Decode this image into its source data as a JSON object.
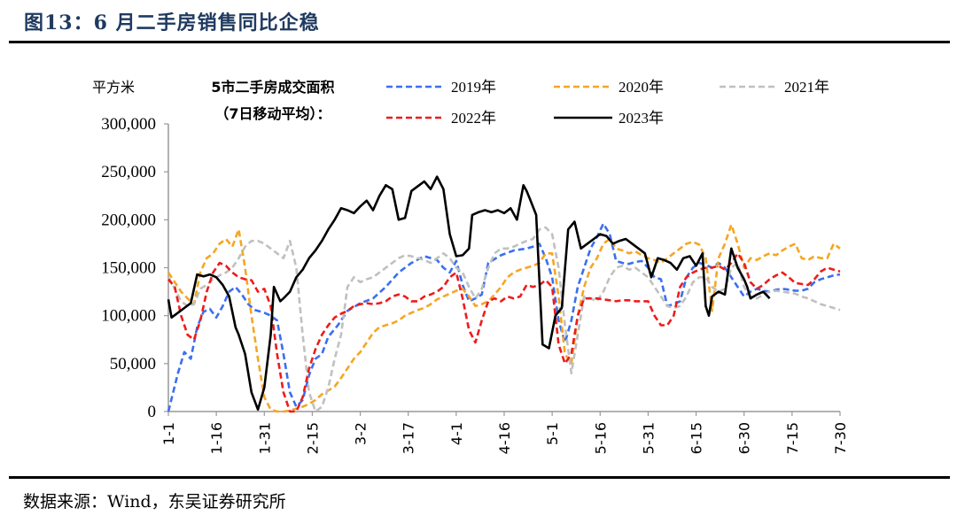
{
  "header": {
    "title": "图13：6 月二手房销售同比企稳"
  },
  "footer": {
    "source": "数据来源：Wind，东吴证券研究所"
  },
  "chart_data": {
    "type": "line",
    "title": "5市二手房成交面积",
    "subtitle": "（7日移动平均）：",
    "ylabel": "平方米",
    "xlabel": "",
    "ylim": [
      0,
      300000
    ],
    "xlim": [
      0,
      210
    ],
    "grid": false,
    "legend_position": "top",
    "yticks": [
      0,
      50000,
      100000,
      150000,
      200000,
      250000,
      300000
    ],
    "ytick_labels": [
      "0",
      "50,000",
      "100,000",
      "150,000",
      "200,000",
      "250,000",
      "300,000"
    ],
    "xticks": [
      0,
      15,
      30,
      45,
      60,
      75,
      90,
      105,
      120,
      135,
      150,
      165,
      180,
      195,
      210
    ],
    "xtick_labels": [
      "1-1",
      "1-16",
      "1-31",
      "2-15",
      "3-2",
      "3-17",
      "4-1",
      "4-16",
      "5-1",
      "5-16",
      "5-31",
      "6-15",
      "6-30",
      "7-15",
      "7-30"
    ],
    "x_unit": "day index from 1-1",
    "series": [
      {
        "name": "2019年",
        "color": "#3b6ff0",
        "dash": true,
        "x": [
          0,
          3,
          5,
          7,
          9,
          11,
          13,
          15,
          17,
          19,
          21,
          23,
          25,
          27,
          30,
          32,
          34,
          36,
          38,
          40,
          42,
          44,
          46,
          48,
          50,
          53,
          56,
          60,
          64,
          68,
          72,
          76,
          80,
          84,
          86,
          88,
          90,
          92,
          94,
          96,
          98,
          100,
          104,
          108,
          112,
          114,
          116,
          118,
          120,
          122,
          124,
          126,
          128,
          130,
          132,
          134,
          136,
          138,
          140,
          142,
          144,
          146,
          148,
          150,
          152,
          154,
          156,
          158,
          160,
          162,
          164,
          166,
          168,
          170,
          172,
          174,
          176,
          178,
          180,
          182,
          184,
          186,
          188,
          190,
          192,
          194,
          196,
          198,
          200,
          202,
          204,
          206,
          208,
          210
        ],
        "y": [
          0,
          40000,
          62000,
          55000,
          88000,
          104000,
          107000,
          98000,
          110000,
          125000,
          130000,
          122000,
          112000,
          106000,
          103000,
          100000,
          95000,
          60000,
          20000,
          5000,
          12000,
          38000,
          55000,
          60000,
          78000,
          90000,
          105000,
          113000,
          118000,
          130000,
          145000,
          155000,
          162000,
          158000,
          150000,
          145000,
          157000,
          132000,
          115000,
          118000,
          122000,
          155000,
          163000,
          168000,
          170000,
          172000,
          175000,
          160000,
          140000,
          95000,
          72000,
          95000,
          130000,
          150000,
          170000,
          182000,
          196000,
          185000,
          157000,
          155000,
          154000,
          156000,
          157000,
          150000,
          140000,
          138000,
          110000,
          112000,
          115000,
          140000,
          150000,
          155000,
          153000,
          150000,
          155000,
          150000,
          140000,
          130000,
          120000,
          125000,
          128000,
          126000,
          125000,
          127000,
          128000,
          127000,
          126000,
          126000,
          128000,
          135000,
          138000,
          140000,
          142000,
          143000
        ]
      },
      {
        "name": "2020年",
        "color": "#f5a623",
        "dash": true,
        "x": [
          0,
          2,
          4,
          6,
          8,
          10,
          12,
          14,
          16,
          18,
          20,
          22,
          24,
          26,
          28,
          30,
          32,
          34,
          36,
          38,
          40,
          42,
          44,
          46,
          48,
          50,
          52,
          54,
          56,
          58,
          60,
          62,
          64,
          66,
          68,
          70,
          72,
          74,
          76,
          78,
          80,
          82,
          84,
          86,
          88,
          90,
          92,
          94,
          96,
          98,
          100,
          102,
          104,
          106,
          108,
          110,
          112,
          114,
          116,
          118,
          120,
          122,
          124,
          126,
          128,
          130,
          132,
          134,
          136,
          138,
          140,
          142,
          144,
          146,
          148,
          150,
          152,
          154,
          156,
          158,
          160,
          162,
          164,
          166,
          168,
          170,
          172,
          174,
          176,
          178,
          180,
          182,
          184,
          186,
          188,
          190,
          192,
          194,
          196,
          198,
          200,
          202,
          204,
          206,
          208,
          210
        ],
        "y": [
          145000,
          135000,
          125000,
          118000,
          112000,
          145000,
          160000,
          165000,
          175000,
          180000,
          172000,
          190000,
          150000,
          100000,
          55000,
          15000,
          2000,
          0,
          0,
          1000,
          3000,
          5000,
          8000,
          12000,
          18000,
          22000,
          26000,
          35000,
          45000,
          55000,
          62000,
          72000,
          82000,
          88000,
          90000,
          92000,
          95000,
          100000,
          103000,
          106000,
          108000,
          112000,
          117000,
          120000,
          123000,
          126000,
          128000,
          120000,
          110000,
          112000,
          115000,
          122000,
          130000,
          140000,
          145000,
          148000,
          150000,
          152000,
          155000,
          165000,
          165000,
          120000,
          60000,
          50000,
          100000,
          130000,
          150000,
          160000,
          175000,
          180000,
          170000,
          168000,
          165000,
          167000,
          163000,
          160000,
          158000,
          155000,
          160000,
          165000,
          170000,
          175000,
          177000,
          174000,
          160000,
          105000,
          160000,
          175000,
          195000,
          175000,
          150000,
          160000,
          158000,
          162000,
          165000,
          163000,
          168000,
          172000,
          175000,
          160000,
          158000,
          162000,
          160000,
          160000,
          175000,
          170000
        ]
      },
      {
        "name": "2021年",
        "color": "#c0c0c0",
        "dash": true,
        "x": [
          0,
          2,
          4,
          6,
          8,
          10,
          12,
          14,
          16,
          18,
          20,
          22,
          24,
          26,
          28,
          30,
          32,
          34,
          36,
          38,
          40,
          42,
          44,
          46,
          48,
          50,
          52,
          54,
          56,
          58,
          60,
          62,
          64,
          66,
          68,
          70,
          72,
          74,
          76,
          78,
          80,
          82,
          84,
          86,
          88,
          90,
          92,
          94,
          96,
          98,
          100,
          102,
          104,
          106,
          108,
          110,
          112,
          114,
          116,
          118,
          120,
          122,
          124,
          126,
          128,
          130,
          132,
          134,
          136,
          138,
          140,
          142,
          144,
          146,
          148,
          150,
          152,
          154,
          156,
          158,
          160,
          162,
          164,
          166,
          168,
          170,
          172,
          174,
          176,
          178,
          180,
          182,
          184,
          186,
          188,
          190,
          192,
          194,
          196,
          198,
          200,
          202,
          204,
          206,
          208,
          210
        ],
        "y": [
          140000,
          128000,
          115000,
          110000,
          112000,
          128000,
          132000,
          138000,
          142000,
          145000,
          150000,
          160000,
          172000,
          178000,
          178000,
          175000,
          170000,
          165000,
          160000,
          178000,
          150000,
          80000,
          20000,
          0,
          5000,
          25000,
          55000,
          80000,
          130000,
          140000,
          135000,
          138000,
          140000,
          145000,
          150000,
          155000,
          160000,
          163000,
          162000,
          160000,
          158000,
          155000,
          160000,
          165000,
          160000,
          150000,
          145000,
          130000,
          118000,
          128000,
          150000,
          165000,
          170000,
          170000,
          172000,
          175000,
          178000,
          180000,
          190000,
          192000,
          185000,
          150000,
          90000,
          40000,
          80000,
          120000,
          118000,
          115000,
          125000,
          140000,
          150000,
          152000,
          148000,
          150000,
          145000,
          140000,
          130000,
          120000,
          110000,
          108000,
          110000,
          120000,
          135000,
          140000,
          140000,
          130000,
          125000,
          128000,
          150000,
          155000,
          130000,
          120000,
          118000,
          122000,
          125000,
          126000,
          125000,
          124000,
          123000,
          120000,
          118000,
          115000,
          112000,
          110000,
          108000,
          106000
        ]
      },
      {
        "name": "2022年",
        "color": "#ee1c1c",
        "dash": true,
        "x": [
          0,
          2,
          4,
          6,
          8,
          10,
          12,
          14,
          16,
          18,
          20,
          22,
          24,
          26,
          28,
          30,
          32,
          34,
          36,
          38,
          40,
          42,
          44,
          46,
          48,
          50,
          52,
          54,
          56,
          58,
          60,
          62,
          64,
          66,
          68,
          70,
          72,
          74,
          76,
          78,
          80,
          82,
          84,
          86,
          88,
          90,
          92,
          94,
          96,
          98,
          100,
          102,
          104,
          106,
          108,
          110,
          112,
          114,
          116,
          118,
          120,
          122,
          124,
          126,
          128,
          130,
          132,
          134,
          136,
          138,
          140,
          142,
          144,
          146,
          148,
          150,
          152,
          154,
          156,
          158,
          160,
          162,
          164,
          166,
          168,
          170,
          172,
          174,
          176,
          178,
          180,
          182,
          184,
          186,
          188,
          190,
          192,
          194,
          196,
          198,
          200,
          202,
          204,
          206,
          208,
          210
        ],
        "y": [
          138000,
          130000,
          100000,
          80000,
          75000,
          95000,
          125000,
          145000,
          155000,
          152000,
          145000,
          140000,
          138000,
          137000,
          125000,
          128000,
          110000,
          60000,
          20000,
          0,
          0,
          15000,
          45000,
          65000,
          80000,
          90000,
          98000,
          102000,
          105000,
          110000,
          112000,
          113000,
          112000,
          113000,
          115000,
          120000,
          122000,
          120000,
          115000,
          115000,
          120000,
          122000,
          125000,
          130000,
          140000,
          145000,
          118000,
          85000,
          72000,
          95000,
          115000,
          118000,
          115000,
          120000,
          118000,
          120000,
          132000,
          130000,
          132000,
          137000,
          130000,
          70000,
          50000,
          60000,
          100000,
          118000,
          118000,
          118000,
          117000,
          116000,
          115000,
          116000,
          116000,
          115000,
          115000,
          115000,
          100000,
          90000,
          90000,
          100000,
          130000,
          140000,
          145000,
          148000,
          150000,
          150000,
          152000,
          148000,
          155000,
          165000,
          155000,
          135000,
          128000,
          132000,
          138000,
          142000,
          145000,
          140000,
          134000,
          133000,
          132000,
          138000,
          146000,
          150000,
          148000,
          146000
        ]
      },
      {
        "name": "2023年",
        "color": "#000000",
        "dash": false,
        "x": [
          0,
          1,
          3,
          5,
          7,
          9,
          11,
          13,
          15,
          17,
          19,
          21,
          22,
          24,
          26,
          28,
          30,
          32,
          33,
          35,
          36,
          38,
          40,
          42,
          44,
          46,
          48,
          50,
          52,
          54,
          56,
          58,
          60,
          62,
          64,
          66,
          68,
          70,
          72,
          74,
          76,
          78,
          80,
          82,
          84,
          86,
          88,
          90,
          92,
          94,
          95,
          97,
          99,
          101,
          103,
          105,
          107,
          109,
          111,
          112,
          113,
          115,
          117,
          119,
          121,
          123,
          125,
          127,
          129,
          131,
          133,
          135,
          137,
          139,
          141,
          143,
          145,
          147,
          149,
          151,
          153,
          155,
          157,
          159,
          161,
          163,
          165,
          167,
          168,
          169,
          170,
          172,
          174,
          176,
          178,
          180,
          181,
          182,
          184,
          186,
          188
        ],
        "y": [
          117000,
          98000,
          103000,
          108000,
          113000,
          143000,
          141000,
          143000,
          140000,
          132000,
          120000,
          88000,
          80000,
          60000,
          20000,
          2000,
          25000,
          80000,
          130000,
          115000,
          118000,
          125000,
          140000,
          148000,
          160000,
          168000,
          178000,
          190000,
          200000,
          212000,
          210000,
          207000,
          214000,
          220000,
          210000,
          225000,
          236000,
          232000,
          200000,
          202000,
          230000,
          235000,
          240000,
          232000,
          245000,
          232000,
          185000,
          162000,
          163000,
          170000,
          205000,
          208000,
          210000,
          208000,
          210000,
          207000,
          212000,
          200000,
          236000,
          230000,
          222000,
          205000,
          70000,
          66000,
          100000,
          108000,
          190000,
          198000,
          170000,
          175000,
          180000,
          185000,
          183000,
          175000,
          178000,
          180000,
          175000,
          170000,
          165000,
          140000,
          160000,
          158000,
          155000,
          148000,
          160000,
          162000,
          152000,
          165000,
          110000,
          100000,
          120000,
          125000,
          122000,
          170000,
          150000,
          138000,
          130000,
          118000,
          122000,
          125000,
          118000
        ]
      }
    ]
  }
}
